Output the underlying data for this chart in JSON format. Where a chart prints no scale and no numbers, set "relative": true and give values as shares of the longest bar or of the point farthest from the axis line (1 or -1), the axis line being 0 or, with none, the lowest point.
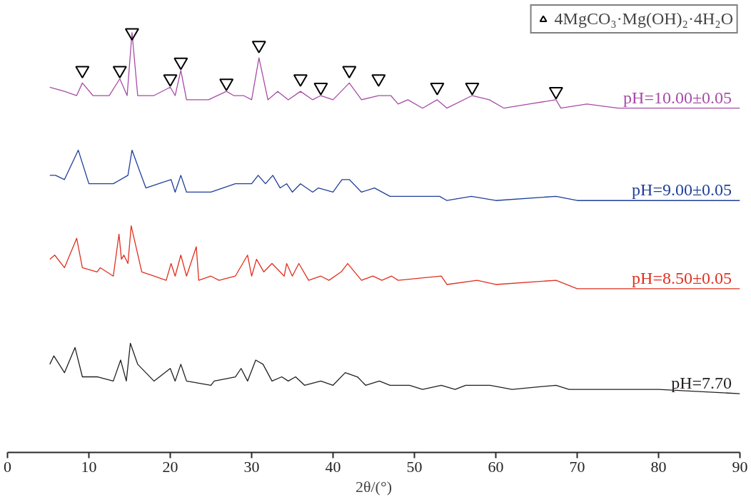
{
  "chart_data": {
    "type": "line",
    "relative": true,
    "xlabel": "2θ/(°)",
    "xlim": [
      0,
      90
    ],
    "xticks": [
      0,
      10,
      20,
      30,
      40,
      50,
      60,
      70,
      80,
      90
    ],
    "grid": false,
    "line_style": "solid",
    "legend": "top right",
    "series": [
      {
        "name": "pH=10.00±0.05",
        "color": "#a64ca6",
        "x": [
          5.2,
          7,
          8.5,
          9.2,
          10.5,
          12.5,
          13.8,
          14.7,
          15.3,
          16,
          18,
          20.0,
          20.6,
          21.3,
          22,
          24.7,
          26.9,
          27.8,
          29.0,
          30,
          30.9,
          32,
          33.2,
          34.5,
          36.0,
          37.5,
          38.5,
          40,
          41.0,
          42.0,
          43.5,
          45.6,
          47.1,
          48,
          49.2,
          51,
          52.8,
          54,
          57.1,
          59.2,
          61,
          64.1,
          67.4,
          68,
          71.2,
          75,
          90
        ],
        "values": [
          0.87,
          0.86,
          0.85,
          0.88,
          0.85,
          0.85,
          0.89,
          0.85,
          1.0,
          0.85,
          0.85,
          0.87,
          0.85,
          0.91,
          0.84,
          0.84,
          0.86,
          0.85,
          0.85,
          0.84,
          0.94,
          0.84,
          0.86,
          0.84,
          0.86,
          0.84,
          0.85,
          0.84,
          0.86,
          0.88,
          0.84,
          0.85,
          0.85,
          0.83,
          0.84,
          0.82,
          0.84,
          0.82,
          0.85,
          0.84,
          0.82,
          0.83,
          0.84,
          0.82,
          0.83,
          0.82,
          0.82
        ]
      },
      {
        "name": "pH=9.00±0.05",
        "color": "#1f3f99",
        "x": [
          5.2,
          5.9,
          7,
          8.7,
          10,
          13,
          14.8,
          15.3,
          17,
          20.1,
          20.6,
          21.3,
          22,
          25,
          28,
          30,
          30.8,
          31.7,
          32.6,
          33.5,
          34.3,
          35,
          36.0,
          37.5,
          38.2,
          40,
          41.1,
          42.0,
          43.5,
          45.1,
          47,
          50,
          53.1,
          54,
          57,
          60,
          67.4,
          70,
          90
        ],
        "values": [
          0.66,
          0.66,
          0.65,
          0.72,
          0.64,
          0.64,
          0.66,
          0.72,
          0.63,
          0.65,
          0.62,
          0.66,
          0.62,
          0.62,
          0.64,
          0.64,
          0.66,
          0.64,
          0.66,
          0.63,
          0.64,
          0.62,
          0.64,
          0.62,
          0.63,
          0.62,
          0.65,
          0.65,
          0.62,
          0.63,
          0.61,
          0.61,
          0.61,
          0.6,
          0.61,
          0.6,
          0.61,
          0.6,
          0.6
        ]
      },
      {
        "name": "pH=8.50±0.05",
        "color": "#e0301e",
        "x": [
          5.2,
          5.8,
          7,
          8.5,
          9.2,
          11,
          11.4,
          13,
          13.7,
          14.0,
          14.3,
          14.8,
          15.2,
          16.5,
          18,
          19.5,
          20.1,
          20.6,
          21.3,
          22,
          23.2,
          23.5,
          25,
          26,
          28,
          29.5,
          30,
          30.6,
          31.5,
          32.5,
          34,
          34.3,
          35,
          35.8,
          37,
          38.5,
          39.5,
          41.0,
          41.8,
          43.5,
          44.9,
          46,
          47.2,
          48,
          53.3,
          54,
          57.7,
          60,
          67.4,
          70,
          90
        ],
        "values": [
          0.46,
          0.47,
          0.44,
          0.51,
          0.44,
          0.43,
          0.44,
          0.42,
          0.52,
          0.46,
          0.47,
          0.45,
          0.54,
          0.43,
          0.42,
          0.41,
          0.45,
          0.42,
          0.47,
          0.42,
          0.49,
          0.41,
          0.42,
          0.41,
          0.42,
          0.47,
          0.42,
          0.46,
          0.43,
          0.45,
          0.42,
          0.45,
          0.42,
          0.45,
          0.41,
          0.42,
          0.41,
          0.43,
          0.45,
          0.41,
          0.42,
          0.41,
          0.42,
          0.41,
          0.42,
          0.4,
          0.41,
          0.4,
          0.41,
          0.39,
          0.39
        ]
      },
      {
        "name": "pH=7.70",
        "color": "#231f20",
        "x": [
          5.2,
          5.7,
          7,
          8.3,
          9.2,
          11.1,
          13,
          13.9,
          14.6,
          15.1,
          16,
          18,
          20.0,
          20.6,
          21.3,
          22,
          25,
          25.4,
          28,
          28.7,
          29.5,
          30.5,
          31.4,
          32.5,
          33.7,
          34.5,
          35.4,
          36.5,
          38.5,
          40,
          41.5,
          43.0,
          44,
          45.7,
          47,
          49.4,
          51,
          53.3,
          55,
          56.3,
          57.7,
          59.3,
          62,
          67.4,
          69,
          71,
          80,
          90
        ],
        "values": [
          0.21,
          0.23,
          0.19,
          0.25,
          0.18,
          0.18,
          0.17,
          0.22,
          0.17,
          0.26,
          0.21,
          0.17,
          0.2,
          0.17,
          0.21,
          0.17,
          0.16,
          0.17,
          0.18,
          0.2,
          0.17,
          0.22,
          0.21,
          0.17,
          0.18,
          0.17,
          0.18,
          0.16,
          0.17,
          0.16,
          0.19,
          0.18,
          0.16,
          0.17,
          0.16,
          0.16,
          0.15,
          0.16,
          0.15,
          0.16,
          0.16,
          0.16,
          0.15,
          0.16,
          0.15,
          0.15,
          0.15,
          0.14
        ]
      },
      {
        "name": "4MgCO₃·Mg(OH)₂·4H₂O",
        "type": "scatter",
        "marker": "triangle",
        "color": "#000000",
        "x": [
          9.2,
          13.8,
          15.3,
          20.0,
          21.3,
          26.9,
          30.9,
          36.0,
          38.5,
          42.0,
          45.6,
          52.8,
          57.1,
          67.4
        ],
        "values": [
          0.91,
          0.91,
          1.0,
          0.89,
          0.93,
          0.88,
          0.97,
          0.89,
          0.87,
          0.91,
          0.89,
          0.87,
          0.87,
          0.86
        ]
      }
    ]
  }
}
